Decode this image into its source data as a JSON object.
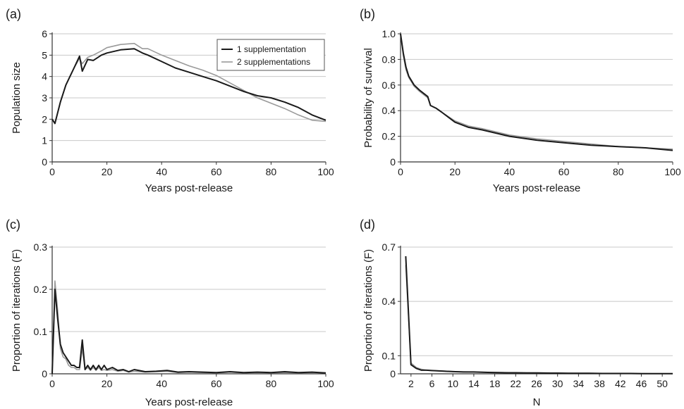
{
  "colors": {
    "series_1": "#1a1a1a",
    "series_2": "#9a9a9a",
    "grid": "#c8c8c8",
    "axis": "#333333"
  },
  "chart_data": [
    {
      "panel": "(a)",
      "type": "line",
      "xlabel": "Years post-release",
      "ylabel": "Population size",
      "xlim": [
        0,
        100
      ],
      "ylim": [
        0,
        6
      ],
      "xticks": [
        "0",
        "20",
        "40",
        "60",
        "80",
        "100"
      ],
      "yticks": [
        "0",
        "1",
        "2",
        "3",
        "4",
        "5",
        "6"
      ],
      "grid": true,
      "legend_position": "top-right",
      "series": [
        {
          "name": "1 supplementation",
          "x": [
            0,
            1,
            3,
            5,
            8,
            10,
            11,
            13,
            15,
            18,
            20,
            25,
            30,
            33,
            35,
            40,
            45,
            50,
            55,
            60,
            65,
            70,
            75,
            80,
            85,
            90,
            95,
            100
          ],
          "y": [
            2.0,
            1.8,
            2.8,
            3.6,
            4.4,
            4.95,
            4.25,
            4.8,
            4.75,
            5.0,
            5.1,
            5.25,
            5.3,
            5.1,
            5.0,
            4.7,
            4.4,
            4.2,
            4.0,
            3.8,
            3.55,
            3.3,
            3.1,
            3.0,
            2.8,
            2.55,
            2.2,
            1.95
          ]
        },
        {
          "name": "2 supplementations",
          "x": [
            0,
            1,
            3,
            5,
            8,
            10,
            11,
            13,
            15,
            18,
            20,
            25,
            30,
            33,
            35,
            40,
            45,
            50,
            55,
            60,
            65,
            70,
            75,
            80,
            85,
            90,
            95,
            100
          ],
          "y": [
            2.0,
            1.8,
            2.8,
            3.6,
            4.4,
            4.85,
            4.6,
            4.9,
            5.0,
            5.2,
            5.35,
            5.5,
            5.55,
            5.3,
            5.3,
            5.0,
            4.75,
            4.5,
            4.3,
            4.05,
            3.7,
            3.35,
            3.0,
            2.75,
            2.5,
            2.2,
            1.95,
            1.9
          ]
        }
      ]
    },
    {
      "panel": "(b)",
      "type": "line",
      "xlabel": "Years post-release",
      "ylabel": "Probability of survival",
      "xlim": [
        0,
        100
      ],
      "ylim": [
        0,
        1
      ],
      "xticks": [
        "0",
        "20",
        "40",
        "60",
        "80",
        "100"
      ],
      "yticks": [
        "0",
        "0.2",
        "0.4",
        "0.6",
        "0.8",
        "1.0"
      ],
      "grid": true,
      "series": [
        {
          "x": [
            0,
            1,
            2,
            3,
            5,
            7,
            10,
            11,
            13,
            15,
            20,
            25,
            30,
            40,
            50,
            60,
            70,
            80,
            90,
            100
          ],
          "y": [
            1.0,
            0.85,
            0.74,
            0.67,
            0.6,
            0.56,
            0.51,
            0.44,
            0.42,
            0.39,
            0.31,
            0.27,
            0.25,
            0.2,
            0.17,
            0.15,
            0.13,
            0.12,
            0.11,
            0.09
          ]
        },
        {
          "x": [
            0,
            1,
            2,
            3,
            5,
            7,
            10,
            11,
            13,
            15,
            20,
            25,
            30,
            40,
            50,
            60,
            70,
            80,
            90,
            100
          ],
          "y": [
            1.0,
            0.83,
            0.72,
            0.66,
            0.59,
            0.55,
            0.5,
            0.44,
            0.42,
            0.39,
            0.32,
            0.28,
            0.26,
            0.21,
            0.18,
            0.16,
            0.14,
            0.12,
            0.11,
            0.1
          ]
        }
      ]
    },
    {
      "panel": "(c)",
      "type": "line",
      "xlabel": "Years post-release",
      "ylabel": "Proportion of iterations (F)",
      "xlim": [
        0,
        100
      ],
      "ylim": [
        0,
        0.3
      ],
      "xticks": [
        "0",
        "20",
        "40",
        "60",
        "80",
        "100"
      ],
      "yticks": [
        "0",
        "0.1",
        "0.2",
        "0.3"
      ],
      "grid": true,
      "series": [
        {
          "x": [
            0,
            1,
            2,
            3,
            4,
            5,
            6,
            7,
            8,
            9,
            10,
            11,
            12,
            13,
            14,
            15,
            16,
            17,
            18,
            19,
            20,
            22,
            24,
            26,
            28,
            30,
            34,
            38,
            42,
            46,
            50,
            55,
            60,
            65,
            70,
            75,
            80,
            85,
            90,
            95,
            100
          ],
          "y": [
            0.0,
            0.2,
            0.13,
            0.07,
            0.05,
            0.04,
            0.03,
            0.02,
            0.02,
            0.015,
            0.015,
            0.08,
            0.01,
            0.02,
            0.01,
            0.02,
            0.01,
            0.02,
            0.01,
            0.02,
            0.01,
            0.015,
            0.008,
            0.01,
            0.005,
            0.01,
            0.005,
            0.006,
            0.008,
            0.004,
            0.005,
            0.004,
            0.003,
            0.005,
            0.003,
            0.004,
            0.003,
            0.005,
            0.003,
            0.004,
            0.002
          ]
        },
        {
          "x": [
            0,
            1,
            2,
            3,
            4,
            5,
            6,
            7,
            8,
            9,
            10,
            11,
            12,
            13,
            14,
            15,
            16,
            17,
            18,
            19,
            20,
            22,
            24,
            26,
            28,
            30,
            34,
            38,
            42,
            46,
            50,
            55,
            60,
            65,
            70,
            75,
            80,
            85,
            90,
            95,
            100
          ],
          "y": [
            0.0,
            0.22,
            0.15,
            0.06,
            0.04,
            0.035,
            0.02,
            0.015,
            0.015,
            0.01,
            0.01,
            0.06,
            0.01,
            0.015,
            0.008,
            0.015,
            0.008,
            0.015,
            0.008,
            0.01,
            0.008,
            0.01,
            0.006,
            0.008,
            0.004,
            0.006,
            0.004,
            0.005,
            0.006,
            0.003,
            0.004,
            0.003,
            0.002,
            0.004,
            0.002,
            0.003,
            0.002,
            0.003,
            0.002,
            0.003,
            0.002
          ]
        }
      ]
    },
    {
      "panel": "(d)",
      "type": "line",
      "xlabel": "N",
      "ylabel": "Proportion of iterations (F)",
      "xlim": [
        0,
        52
      ],
      "ylim": [
        0,
        0.7
      ],
      "xtick_values": [
        2,
        6,
        10,
        14,
        18,
        22,
        26,
        30,
        34,
        38,
        42,
        46,
        50
      ],
      "xticks": [
        "2",
        "6",
        "10",
        "14",
        "18",
        "22",
        "26",
        "30",
        "34",
        "38",
        "42",
        "46",
        "50"
      ],
      "ytick_values": [
        0,
        0.1,
        0.4,
        0.7
      ],
      "yticks": [
        "0",
        "0.1",
        "0.4",
        "0.7"
      ],
      "grid": true,
      "series": [
        {
          "x": [
            1,
            2,
            3,
            4,
            5,
            6,
            8,
            10,
            12,
            14,
            16,
            18,
            20,
            22,
            24,
            26,
            28,
            30,
            32,
            34,
            36,
            38,
            40,
            42,
            44,
            46,
            48,
            50,
            52
          ],
          "y": [
            0.65,
            0.05,
            0.03,
            0.02,
            0.02,
            0.018,
            0.015,
            0.012,
            0.01,
            0.01,
            0.008,
            0.007,
            0.006,
            0.006,
            0.005,
            0.005,
            0.004,
            0.004,
            0.003,
            0.003,
            0.003,
            0.002,
            0.002,
            0.002,
            0.002,
            0.001,
            0.001,
            0.001,
            0.001
          ]
        },
        {
          "x": [
            1,
            2,
            3,
            4,
            5,
            6,
            8,
            10,
            12,
            14,
            16,
            18,
            20,
            22,
            24,
            26,
            28,
            30,
            32,
            34,
            36,
            38,
            40,
            42,
            44,
            46,
            48,
            50,
            52
          ],
          "y": [
            0.6,
            0.06,
            0.035,
            0.025,
            0.02,
            0.018,
            0.015,
            0.013,
            0.011,
            0.01,
            0.009,
            0.008,
            0.007,
            0.006,
            0.006,
            0.005,
            0.005,
            0.004,
            0.004,
            0.003,
            0.003,
            0.003,
            0.002,
            0.002,
            0.002,
            0.002,
            0.001,
            0.001,
            0.001
          ]
        }
      ]
    }
  ]
}
